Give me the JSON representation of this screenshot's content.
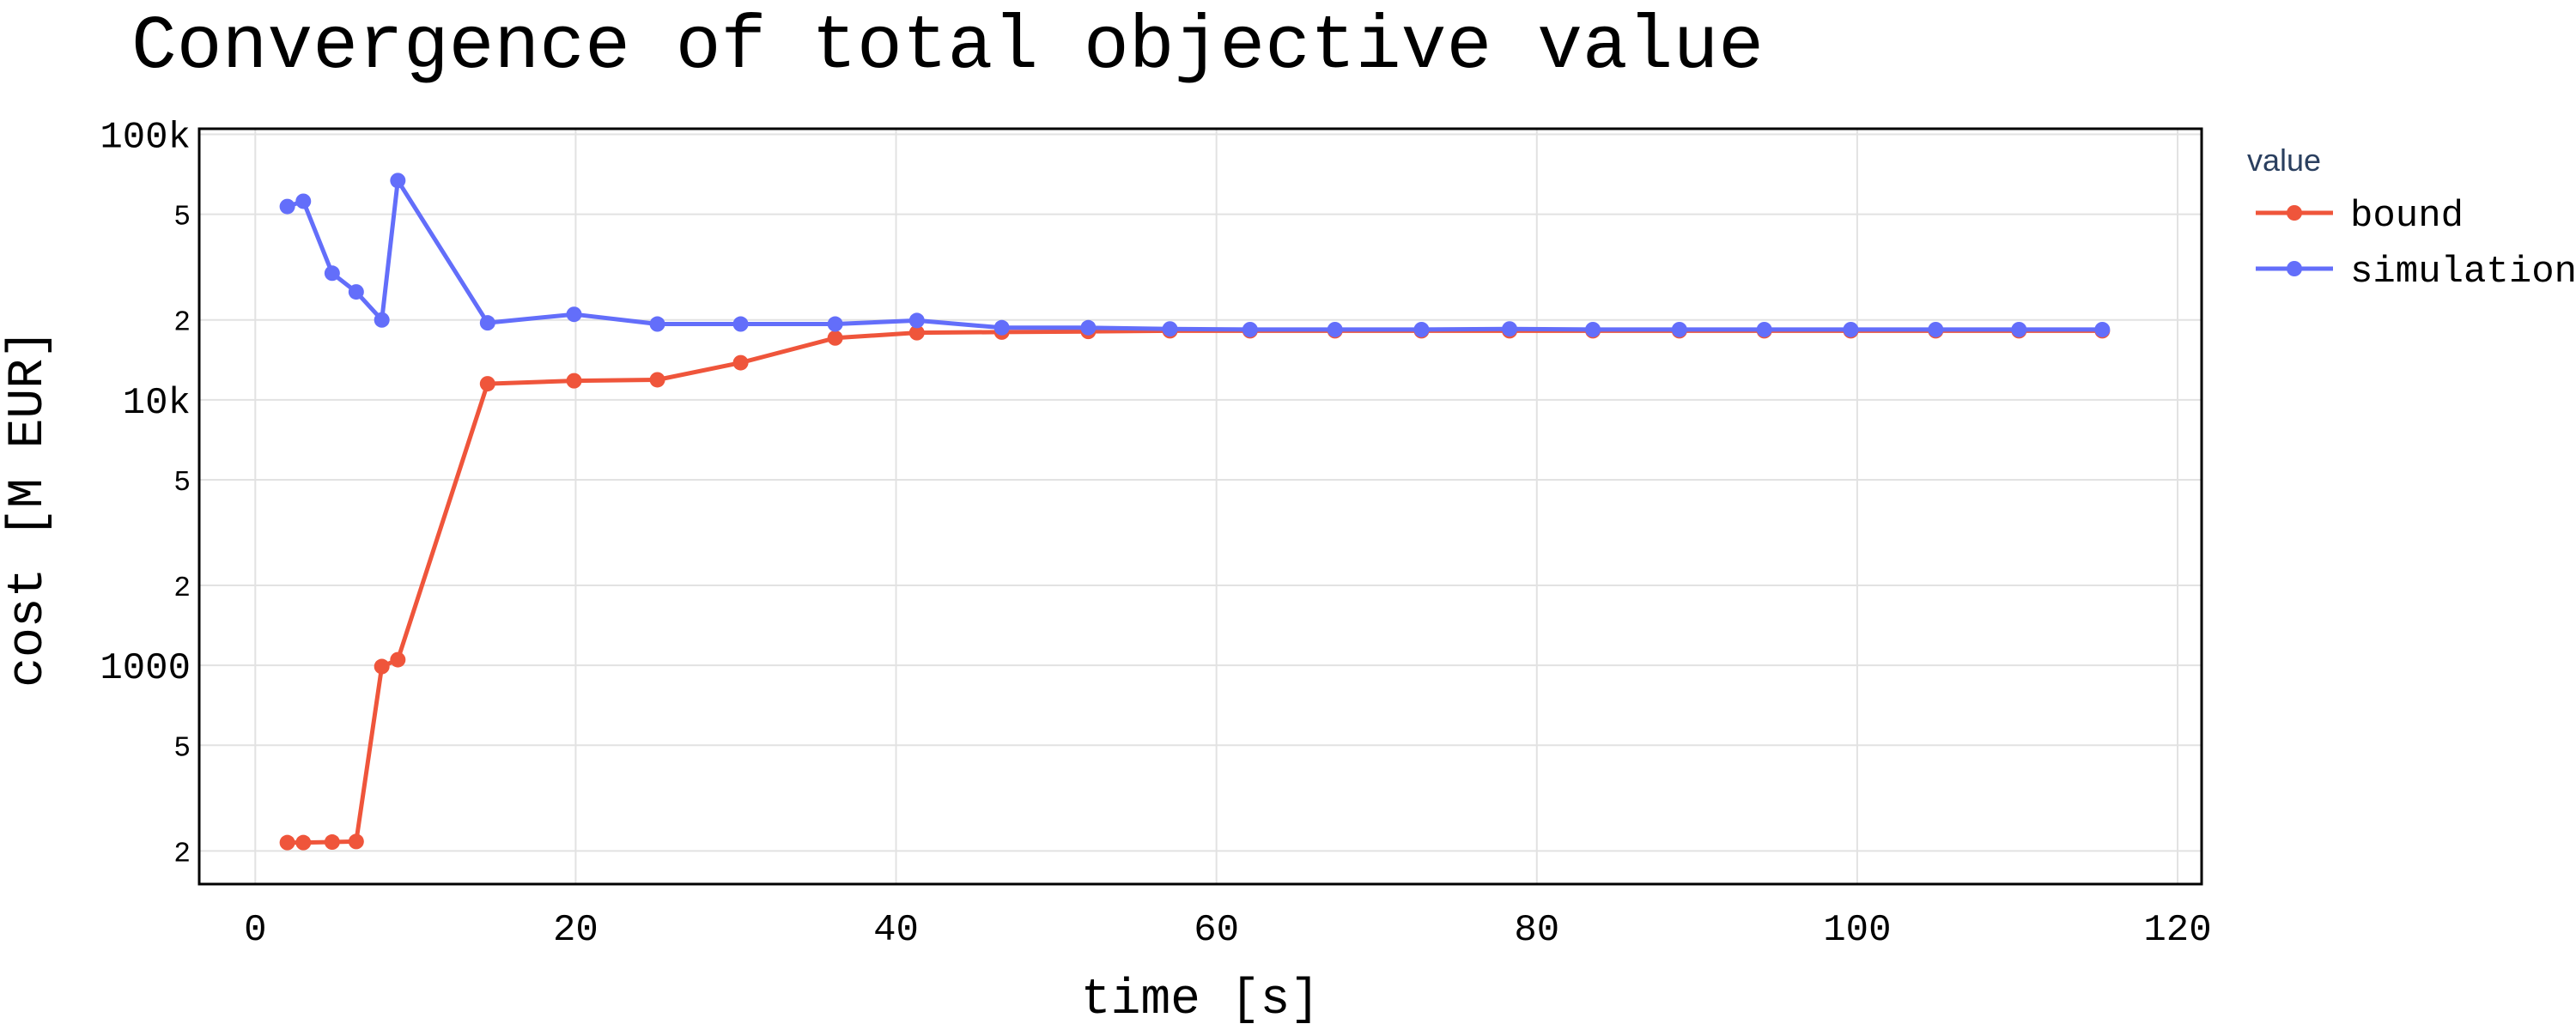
{
  "chart_data": {
    "type": "line",
    "title": "Convergence of total objective value",
    "xlabel": "time [s]",
    "ylabel": "cost [M EUR]",
    "y_scale": "log",
    "xlim": [
      -3.5,
      121.5
    ],
    "ylim": [
      150,
      105000
    ],
    "x_ticks": [
      0,
      20,
      40,
      60,
      80,
      100,
      120
    ],
    "x_tick_labels": [
      "0",
      "20",
      "40",
      "60",
      "80",
      "100",
      "120"
    ],
    "y_major_ticks": [
      1000,
      10000,
      100000
    ],
    "y_major_labels": [
      "1000",
      "10k",
      "100k"
    ],
    "y_minor_ticks": [
      200,
      500,
      2000,
      5000,
      20000,
      50000
    ],
    "y_minor_labels": [
      "2",
      "5",
      "2",
      "5",
      "2",
      "5"
    ],
    "grid": true,
    "legend": {
      "title": "value",
      "position": "right"
    },
    "series": [
      {
        "name": "bound",
        "color": "#EF553B",
        "x": [
          2,
          3,
          4.8,
          6.3,
          7.9,
          8.9,
          14.5,
          19.9,
          25.1,
          30.3,
          36.2,
          41.3,
          46.6,
          52,
          57.1,
          62.1,
          67.4,
          72.8,
          78.3,
          83.5,
          88.9,
          94.2,
          99.6,
          104.9,
          110.1,
          115.3
        ],
        "y": [
          215,
          215,
          216,
          217,
          990,
          1050,
          11500,
          11800,
          11900,
          13800,
          17100,
          17900,
          18000,
          18100,
          18200,
          18200,
          18200,
          18200,
          18200,
          18200,
          18200,
          18200,
          18200,
          18200,
          18200,
          18200
        ]
      },
      {
        "name": "simulation",
        "color": "#636EFA",
        "x": [
          2,
          3,
          4.8,
          6.3,
          7.9,
          8.9,
          14.5,
          19.9,
          25.1,
          30.3,
          36.2,
          41.3,
          46.6,
          52,
          57.1,
          62.1,
          67.4,
          72.8,
          78.3,
          83.5,
          88.9,
          94.2,
          99.6,
          104.9,
          110.1,
          115.3
        ],
        "y": [
          53500,
          56000,
          30000,
          25500,
          20000,
          67000,
          19500,
          21000,
          19300,
          19300,
          19300,
          19900,
          18700,
          18700,
          18500,
          18400,
          18400,
          18400,
          18500,
          18400,
          18400,
          18400,
          18400,
          18400,
          18400,
          18400
        ]
      }
    ]
  }
}
